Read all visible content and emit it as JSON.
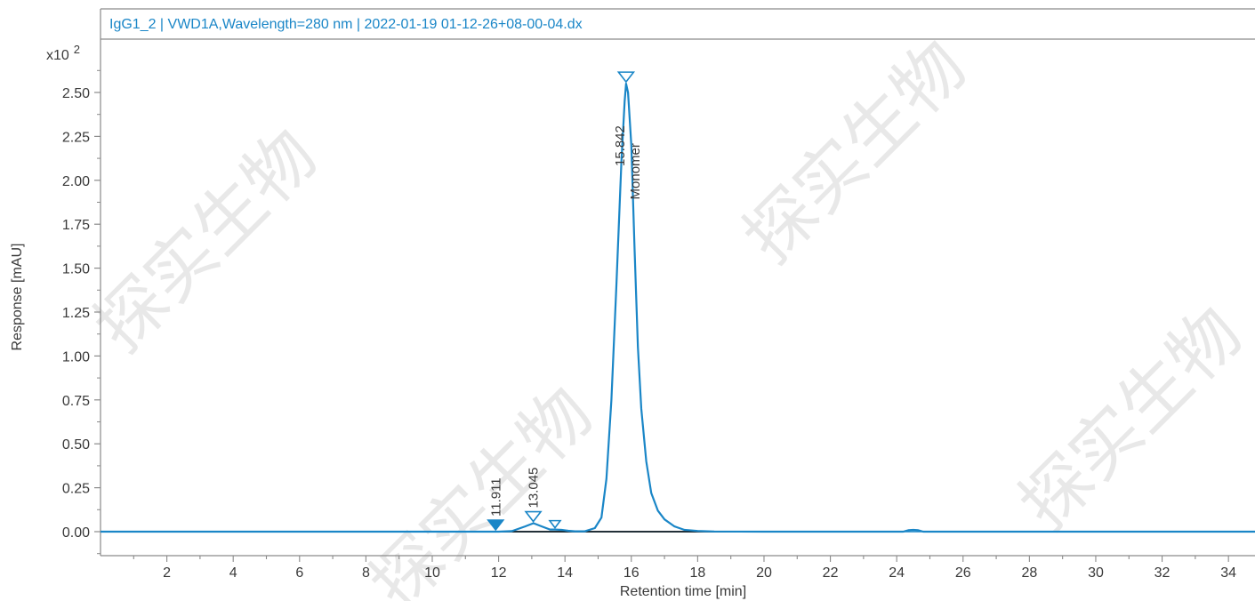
{
  "chart_data": {
    "type": "line",
    "title": "IgG1_2 | VWD1A,Wavelength=280 nm | 2022-01-19 01-12-26+08-00-04.dx",
    "xlabel": "Retention time [min]",
    "ylabel": "Response [mAU]",
    "y_multiplier": "x10",
    "y_multiplier_exp": "2",
    "xlim": [
      0.0,
      34.8
    ],
    "ylim": [
      -0.14,
      2.73
    ],
    "x_ticks": [
      "2",
      "4",
      "6",
      "8",
      "10",
      "12",
      "14",
      "16",
      "18",
      "20",
      "22",
      "24",
      "26",
      "28",
      "30",
      "32",
      "34"
    ],
    "y_ticks": [
      "0.00",
      "0.25",
      "0.50",
      "0.75",
      "1.00",
      "1.25",
      "1.50",
      "1.75",
      "2.00",
      "2.25",
      "2.50"
    ],
    "grid": false,
    "line_color": "#1a86c7",
    "baseline_color": "#000000",
    "baseline_x": [
      11.9,
      20.75
    ],
    "series": [
      {
        "x": [
          0,
          10.5,
          12.0,
          12.4,
          12.8,
          13.05,
          13.3,
          13.55,
          13.7,
          13.9,
          14.1,
          14.3,
          14.6,
          14.9,
          15.1,
          15.25,
          15.4,
          15.55,
          15.7,
          15.8,
          15.842,
          15.9,
          16.0,
          16.1,
          16.2,
          16.3,
          16.45,
          16.6,
          16.8,
          17.0,
          17.3,
          17.6,
          18.0,
          18.5,
          20.0,
          24.2,
          24.35,
          24.5,
          24.65,
          24.8,
          34.8
        ],
        "y": [
          0,
          0,
          0,
          0.003,
          0.03,
          0.048,
          0.03,
          0.012,
          0.012,
          0.01,
          0.005,
          0.002,
          0.002,
          0.02,
          0.08,
          0.3,
          0.75,
          1.4,
          2.1,
          2.45,
          2.55,
          2.5,
          2.2,
          1.6,
          1.05,
          0.7,
          0.4,
          0.22,
          0.12,
          0.07,
          0.03,
          0.01,
          0.004,
          0.001,
          0,
          0,
          0.008,
          0.01,
          0.008,
          0,
          0
        ]
      }
    ],
    "peaks": [
      {
        "x": 11.911,
        "y": 0.0,
        "label": "11.911",
        "name": "",
        "marker": "filled"
      },
      {
        "x": 13.045,
        "y": 0.048,
        "label": "13.045",
        "name": "",
        "marker": "open"
      },
      {
        "x": 13.7,
        "y": 0.012,
        "label": "",
        "name": "",
        "marker": "open-small"
      },
      {
        "x": 15.842,
        "y": 2.55,
        "label": "15.842",
        "name": "Monomer",
        "marker": "open"
      }
    ]
  },
  "watermark": {
    "text": "探实生物",
    "color": "#000000"
  }
}
